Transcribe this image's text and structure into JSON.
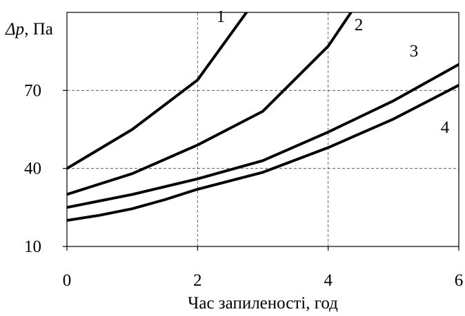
{
  "chart_data": {
    "type": "line",
    "xlabel": "Час запиленості, год",
    "ylabel_italic": "Δp",
    "ylabel_rest": ", Па",
    "xlim": [
      0,
      6
    ],
    "ylim": [
      10,
      100
    ],
    "x_ticks": [
      0,
      2,
      4,
      6
    ],
    "y_ticks": [
      10,
      40,
      70
    ],
    "grid": "dashed",
    "series": [
      {
        "name": "1",
        "x": [
          0,
          1,
          2,
          2.75
        ],
        "y": [
          40,
          55,
          74,
          100
        ]
      },
      {
        "name": "2",
        "x": [
          0,
          1,
          2,
          3,
          4,
          4.35
        ],
        "y": [
          30,
          38,
          49,
          62,
          87,
          100
        ]
      },
      {
        "name": "3",
        "x": [
          0,
          1,
          2,
          3,
          4,
          5,
          6
        ],
        "y": [
          25,
          30,
          36,
          43,
          54,
          66,
          80
        ]
      },
      {
        "name": "4",
        "x": [
          0,
          0.5,
          1,
          1.5,
          2,
          3,
          4,
          5,
          6
        ],
        "y": [
          20,
          22,
          24.5,
          28,
          32,
          38.5,
          48,
          59,
          72
        ]
      }
    ]
  }
}
